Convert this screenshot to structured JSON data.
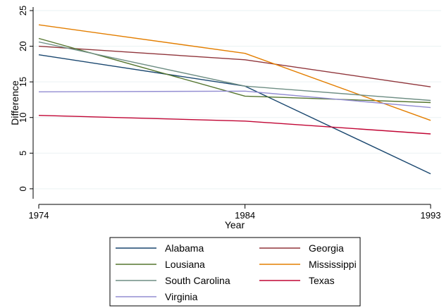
{
  "chart_data": {
    "type": "line",
    "xlabel": "Year",
    "ylabel": "Difference",
    "x": [
      1974,
      1984,
      1993
    ],
    "x_ticks": [
      "1974",
      "1984",
      "1993"
    ],
    "y_ticks": [
      "0",
      "5",
      "10",
      "15",
      "20",
      "25"
    ],
    "xlim": [
      1974,
      1993
    ],
    "ylim": [
      -1.2,
      25.2
    ],
    "grid": true,
    "legend_position": "bottom",
    "series": [
      {
        "name": "Alabama",
        "color": "#1a476f",
        "values": [
          18.8,
          14.4,
          2.1
        ]
      },
      {
        "name": "Georgia",
        "color": "#90353b",
        "values": [
          20.0,
          18.1,
          14.3
        ]
      },
      {
        "name": "Lousiana",
        "color": "#55752f",
        "values": [
          21.1,
          13.0,
          12.1
        ]
      },
      {
        "name": "Mississippi",
        "color": "#e37e00",
        "values": [
          23.0,
          19.0,
          9.6
        ]
      },
      {
        "name": "South Carolina",
        "color": "#6e8e84",
        "values": [
          20.6,
          14.4,
          12.4
        ]
      },
      {
        "name": "Texas",
        "color": "#c10534",
        "values": [
          10.3,
          9.5,
          7.7
        ]
      },
      {
        "name": "Virginia",
        "color": "#938dd2",
        "values": [
          13.6,
          13.7,
          11.4
        ]
      }
    ]
  }
}
